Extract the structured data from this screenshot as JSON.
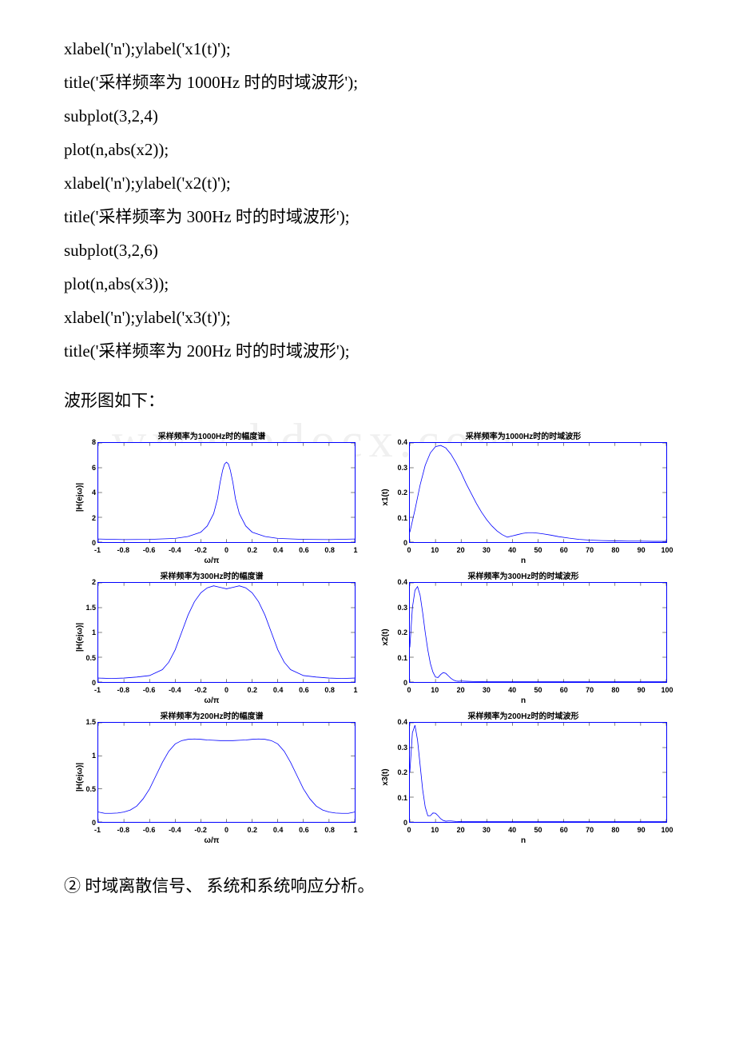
{
  "watermark": "www.bdocx.com",
  "code": {
    "lines": [
      "xlabel('n');ylabel('x1(t)');",
      "title('采样频率为 1000Hz 时的时域波形');",
      "subplot(3,2,4)",
      "plot(n,abs(x2));",
      "xlabel('n');ylabel('x2(t)');",
      "title('采样频率为 300Hz 时的时域波形');",
      "subplot(3,2,6)",
      "plot(n,abs(x3));",
      "xlabel('n');ylabel('x3(t)');",
      "title('采样频率为 200Hz 时的时域波形');"
    ]
  },
  "caption": "波形图如下：",
  "footer": "② 时域离散信号、 系统和系统响应分析。",
  "charts": {
    "line_color": "#0000ff",
    "border_color": "#0000ff",
    "text_color": "#000000",
    "tick_fontsize": 9,
    "title_fontsize": 10,
    "label_fontsize": 10,
    "subplots": [
      {
        "title": "采样频率为1000Hz时的幅度谱",
        "ylabel": "|H(ejω)|",
        "xlabel": "ω/π",
        "xlim": [
          -1,
          1
        ],
        "xticks": [
          -1,
          -0.8,
          -0.6,
          -0.4,
          -0.2,
          0,
          0.2,
          0.4,
          0.6,
          0.8,
          1
        ],
        "ylim": [
          0,
          8
        ],
        "yticks": [
          0,
          2,
          4,
          6,
          8
        ],
        "points": [
          [
            -1,
            0.25
          ],
          [
            -0.8,
            0.2
          ],
          [
            -0.6,
            0.22
          ],
          [
            -0.4,
            0.3
          ],
          [
            -0.3,
            0.45
          ],
          [
            -0.2,
            0.8
          ],
          [
            -0.15,
            1.3
          ],
          [
            -0.1,
            2.3
          ],
          [
            -0.07,
            3.5
          ],
          [
            -0.05,
            4.8
          ],
          [
            -0.03,
            5.8
          ],
          [
            -0.015,
            6.3
          ],
          [
            0,
            6.45
          ],
          [
            0.015,
            6.3
          ],
          [
            0.03,
            5.8
          ],
          [
            0.05,
            4.8
          ],
          [
            0.07,
            3.5
          ],
          [
            0.1,
            2.3
          ],
          [
            0.15,
            1.3
          ],
          [
            0.2,
            0.8
          ],
          [
            0.3,
            0.45
          ],
          [
            0.4,
            0.3
          ],
          [
            0.6,
            0.22
          ],
          [
            0.8,
            0.2
          ],
          [
            1,
            0.25
          ]
        ]
      },
      {
        "title": "采样频率为1000Hz时的时域波形",
        "ylabel": "x1(t)",
        "xlabel": "n",
        "xlim": [
          0,
          100
        ],
        "xticks": [
          0,
          10,
          20,
          30,
          40,
          50,
          60,
          70,
          80,
          90,
          100
        ],
        "ylim": [
          0,
          0.4
        ],
        "yticks": [
          0,
          0.1,
          0.2,
          0.3,
          0.4
        ],
        "ytick_wide": true,
        "points": [
          [
            0,
            0.04
          ],
          [
            2,
            0.13
          ],
          [
            4,
            0.23
          ],
          [
            6,
            0.31
          ],
          [
            8,
            0.36
          ],
          [
            10,
            0.385
          ],
          [
            12,
            0.39
          ],
          [
            14,
            0.38
          ],
          [
            16,
            0.355
          ],
          [
            18,
            0.32
          ],
          [
            20,
            0.28
          ],
          [
            22,
            0.235
          ],
          [
            24,
            0.195
          ],
          [
            26,
            0.155
          ],
          [
            28,
            0.12
          ],
          [
            30,
            0.09
          ],
          [
            32,
            0.065
          ],
          [
            34,
            0.045
          ],
          [
            36,
            0.03
          ],
          [
            38,
            0.02
          ],
          [
            40,
            0.025
          ],
          [
            42,
            0.03
          ],
          [
            44,
            0.035
          ],
          [
            46,
            0.038
          ],
          [
            48,
            0.038
          ],
          [
            50,
            0.036
          ],
          [
            52,
            0.033
          ],
          [
            55,
            0.028
          ],
          [
            58,
            0.022
          ],
          [
            62,
            0.016
          ],
          [
            66,
            0.011
          ],
          [
            70,
            0.008
          ],
          [
            75,
            0.006
          ],
          [
            80,
            0.005
          ],
          [
            85,
            0.004
          ],
          [
            90,
            0.004
          ],
          [
            95,
            0.003
          ],
          [
            100,
            0.003
          ]
        ]
      },
      {
        "title": "采样频率为300Hz时的幅度谱",
        "ylabel": "|H(ejω)|",
        "xlabel": "ω/π",
        "xlim": [
          -1,
          1
        ],
        "xticks": [
          -1,
          -0.8,
          -0.6,
          -0.4,
          -0.2,
          0,
          0.2,
          0.4,
          0.6,
          0.8,
          1
        ],
        "ylim": [
          0,
          2
        ],
        "yticks": [
          0,
          0.5,
          1,
          1.5,
          2
        ],
        "ytick_wide": true,
        "points": [
          [
            -1,
            0.08
          ],
          [
            -0.9,
            0.07
          ],
          [
            -0.8,
            0.08
          ],
          [
            -0.7,
            0.1
          ],
          [
            -0.6,
            0.13
          ],
          [
            -0.5,
            0.25
          ],
          [
            -0.45,
            0.4
          ],
          [
            -0.4,
            0.65
          ],
          [
            -0.35,
            1.0
          ],
          [
            -0.3,
            1.35
          ],
          [
            -0.25,
            1.62
          ],
          [
            -0.2,
            1.8
          ],
          [
            -0.15,
            1.9
          ],
          [
            -0.1,
            1.94
          ],
          [
            -0.05,
            1.91
          ],
          [
            0,
            1.88
          ],
          [
            0.05,
            1.91
          ],
          [
            0.1,
            1.94
          ],
          [
            0.15,
            1.9
          ],
          [
            0.2,
            1.8
          ],
          [
            0.25,
            1.62
          ],
          [
            0.3,
            1.35
          ],
          [
            0.35,
            1.0
          ],
          [
            0.4,
            0.65
          ],
          [
            0.45,
            0.4
          ],
          [
            0.5,
            0.25
          ],
          [
            0.6,
            0.13
          ],
          [
            0.7,
            0.1
          ],
          [
            0.8,
            0.08
          ],
          [
            0.9,
            0.07
          ],
          [
            1,
            0.08
          ]
        ]
      },
      {
        "title": "采样频率为300Hz时的时域波形",
        "ylabel": "x2(t)",
        "xlabel": "n",
        "xlim": [
          0,
          100
        ],
        "xticks": [
          0,
          10,
          20,
          30,
          40,
          50,
          60,
          70,
          80,
          90,
          100
        ],
        "ylim": [
          0,
          0.4
        ],
        "yticks": [
          0,
          0.1,
          0.2,
          0.3,
          0.4
        ],
        "ytick_wide": true,
        "points": [
          [
            0,
            0.14
          ],
          [
            1,
            0.3
          ],
          [
            2,
            0.37
          ],
          [
            3,
            0.385
          ],
          [
            4,
            0.35
          ],
          [
            5,
            0.28
          ],
          [
            6,
            0.2
          ],
          [
            7,
            0.13
          ],
          [
            8,
            0.075
          ],
          [
            9,
            0.04
          ],
          [
            10,
            0.02
          ],
          [
            11,
            0.018
          ],
          [
            12,
            0.03
          ],
          [
            13,
            0.038
          ],
          [
            14,
            0.035
          ],
          [
            15,
            0.025
          ],
          [
            16,
            0.015
          ],
          [
            17,
            0.008
          ],
          [
            18,
            0.004
          ],
          [
            19,
            0.003
          ],
          [
            20,
            0.004
          ],
          [
            22,
            0.003
          ],
          [
            25,
            0.002
          ],
          [
            30,
            0.001
          ],
          [
            40,
            0.001
          ],
          [
            60,
            0.001
          ],
          [
            100,
            0.001
          ]
        ]
      },
      {
        "title": "采样频率为200Hz时的幅度谱",
        "ylabel": "|H(ejω)|",
        "xlabel": "ω/π",
        "xlim": [
          -1,
          1
        ],
        "xticks": [
          -1,
          -0.8,
          -0.6,
          -0.4,
          -0.2,
          0,
          0.2,
          0.4,
          0.6,
          0.8,
          1
        ],
        "ylim": [
          0,
          1.5
        ],
        "yticks": [
          0,
          0.5,
          1,
          1.5
        ],
        "ytick_wide": true,
        "points": [
          [
            -1,
            0.15
          ],
          [
            -0.95,
            0.13
          ],
          [
            -0.9,
            0.13
          ],
          [
            -0.85,
            0.135
          ],
          [
            -0.8,
            0.15
          ],
          [
            -0.75,
            0.18
          ],
          [
            -0.7,
            0.24
          ],
          [
            -0.65,
            0.35
          ],
          [
            -0.6,
            0.5
          ],
          [
            -0.55,
            0.7
          ],
          [
            -0.5,
            0.9
          ],
          [
            -0.45,
            1.07
          ],
          [
            -0.4,
            1.18
          ],
          [
            -0.35,
            1.23
          ],
          [
            -0.3,
            1.25
          ],
          [
            -0.25,
            1.255
          ],
          [
            -0.2,
            1.25
          ],
          [
            -0.15,
            1.24
          ],
          [
            -0.1,
            1.235
          ],
          [
            -0.05,
            1.23
          ],
          [
            0,
            1.23
          ],
          [
            0.05,
            1.23
          ],
          [
            0.1,
            1.235
          ],
          [
            0.15,
            1.24
          ],
          [
            0.2,
            1.25
          ],
          [
            0.25,
            1.255
          ],
          [
            0.3,
            1.25
          ],
          [
            0.35,
            1.23
          ],
          [
            0.4,
            1.18
          ],
          [
            0.45,
            1.07
          ],
          [
            0.5,
            0.9
          ],
          [
            0.55,
            0.7
          ],
          [
            0.6,
            0.5
          ],
          [
            0.65,
            0.35
          ],
          [
            0.7,
            0.24
          ],
          [
            0.75,
            0.18
          ],
          [
            0.8,
            0.15
          ],
          [
            0.85,
            0.135
          ],
          [
            0.9,
            0.13
          ],
          [
            0.95,
            0.13
          ],
          [
            1,
            0.15
          ]
        ]
      },
      {
        "title": "采样频率为200Hz时的时域波形",
        "ylabel": "x3(t)",
        "xlabel": "n",
        "xlim": [
          0,
          100
        ],
        "xticks": [
          0,
          10,
          20,
          30,
          40,
          50,
          60,
          70,
          80,
          90,
          100
        ],
        "ylim": [
          0,
          0.4
        ],
        "yticks": [
          0,
          0.1,
          0.2,
          0.3,
          0.4
        ],
        "ytick_wide": true,
        "points": [
          [
            0,
            0.2
          ],
          [
            1,
            0.36
          ],
          [
            2,
            0.39
          ],
          [
            3,
            0.33
          ],
          [
            4,
            0.23
          ],
          [
            5,
            0.13
          ],
          [
            6,
            0.06
          ],
          [
            7,
            0.025
          ],
          [
            8,
            0.025
          ],
          [
            9,
            0.036
          ],
          [
            10,
            0.035
          ],
          [
            11,
            0.025
          ],
          [
            12,
            0.013
          ],
          [
            13,
            0.006
          ],
          [
            14,
            0.003
          ],
          [
            15,
            0.004
          ],
          [
            16,
            0.004
          ],
          [
            18,
            0.002
          ],
          [
            20,
            0.001
          ],
          [
            25,
            0.001
          ],
          [
            40,
            0.001
          ],
          [
            100,
            0.001
          ]
        ]
      }
    ]
  }
}
